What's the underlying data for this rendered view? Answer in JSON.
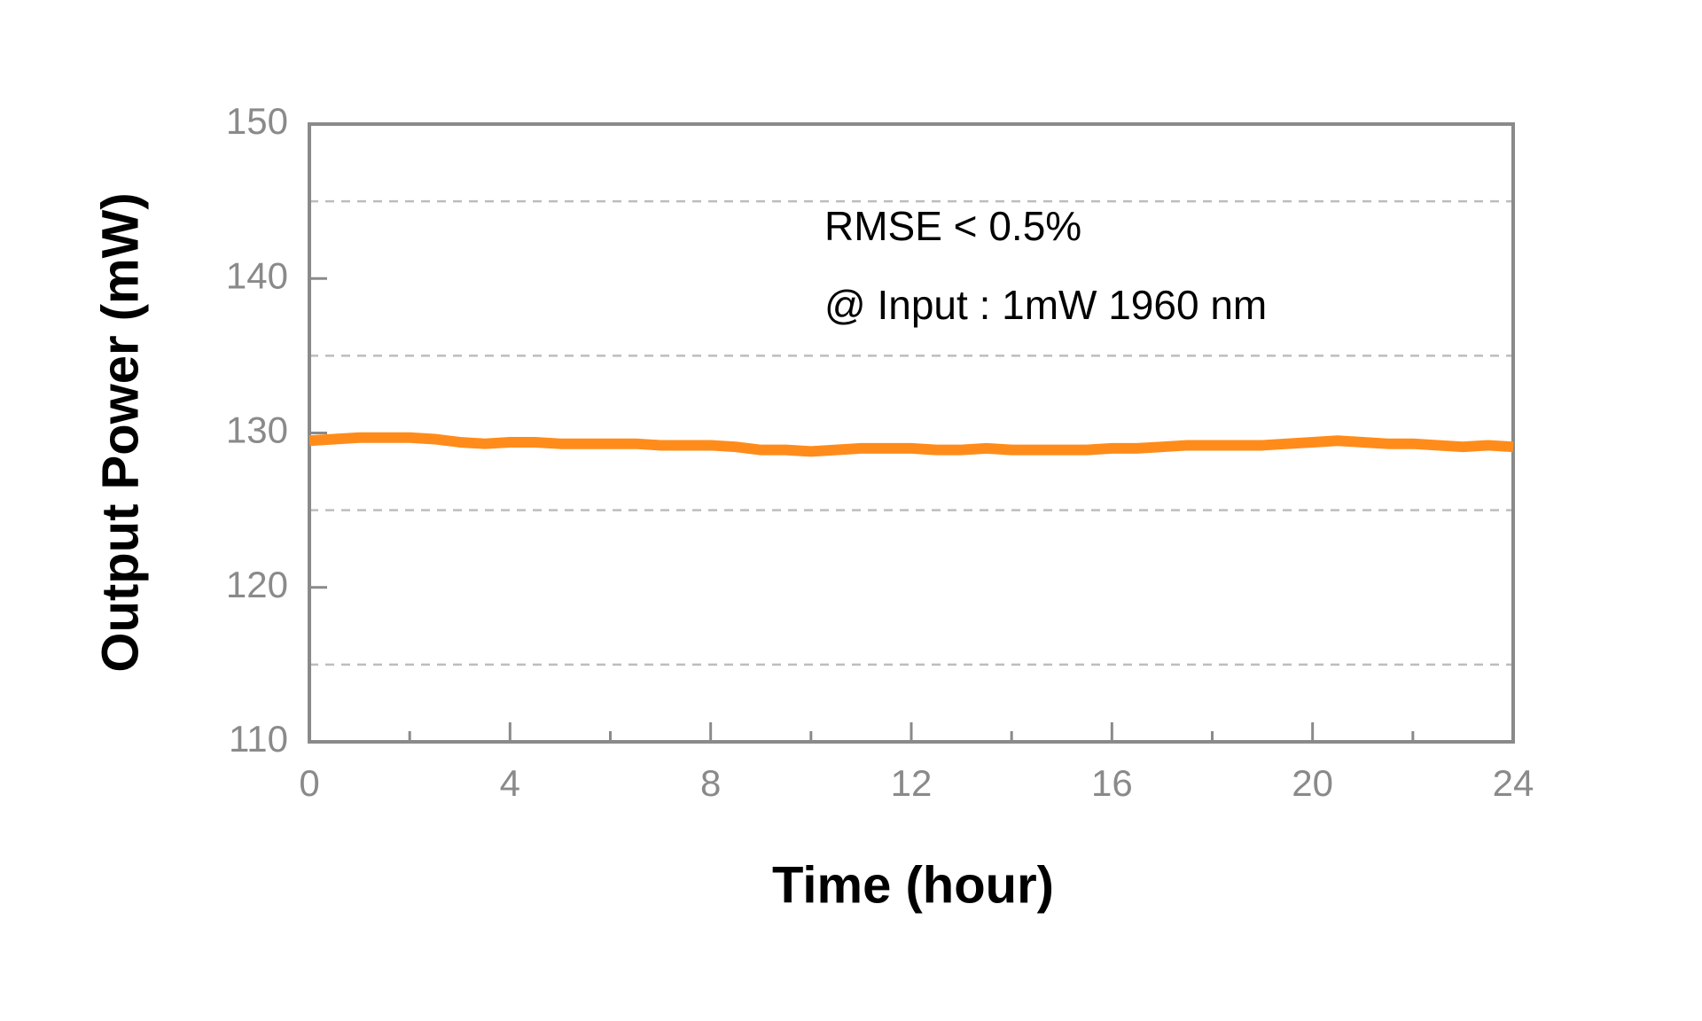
{
  "chart_data": {
    "type": "line",
    "xlabel": "Time (hour)",
    "ylabel": "Output Power (mW)",
    "annotations": [
      "RMSE < 0.5%",
      "@ Input : 1mW 1960 nm"
    ],
    "x": [
      0,
      0.5,
      1,
      1.5,
      2,
      2.5,
      3,
      3.5,
      4,
      4.5,
      5,
      5.5,
      6,
      6.5,
      7,
      7.5,
      8,
      8.5,
      9,
      9.5,
      10,
      10.5,
      11,
      11.5,
      12,
      12.5,
      13,
      13.5,
      14,
      14.5,
      15,
      15.5,
      16,
      16.5,
      17,
      17.5,
      18,
      18.5,
      19,
      19.5,
      20,
      20.5,
      21,
      21.5,
      22,
      22.5,
      23,
      23.5,
      24
    ],
    "series": [
      {
        "name": "Output Power",
        "color": "#ff8c1a",
        "values": [
          129.5,
          129.6,
          129.7,
          129.7,
          129.7,
          129.6,
          129.4,
          129.3,
          129.4,
          129.4,
          129.3,
          129.3,
          129.3,
          129.3,
          129.2,
          129.2,
          129.2,
          129.1,
          128.9,
          128.9,
          128.8,
          128.9,
          129.0,
          129.0,
          129.0,
          128.9,
          128.9,
          129.0,
          128.9,
          128.9,
          128.9,
          128.9,
          129.0,
          129.0,
          129.1,
          129.2,
          129.2,
          129.2,
          129.2,
          129.3,
          129.4,
          129.5,
          129.4,
          129.3,
          129.3,
          129.2,
          129.1,
          129.2,
          129.1
        ]
      }
    ],
    "xlim": [
      0,
      24
    ],
    "xticks": [
      0,
      4,
      8,
      12,
      16,
      20,
      24
    ],
    "xminorticks": [
      2,
      6,
      10,
      14,
      18,
      22
    ],
    "ylim": [
      110,
      150
    ],
    "yticks": [
      110,
      120,
      130,
      140,
      150
    ],
    "ygrid": [
      115,
      125,
      135,
      145
    ]
  }
}
